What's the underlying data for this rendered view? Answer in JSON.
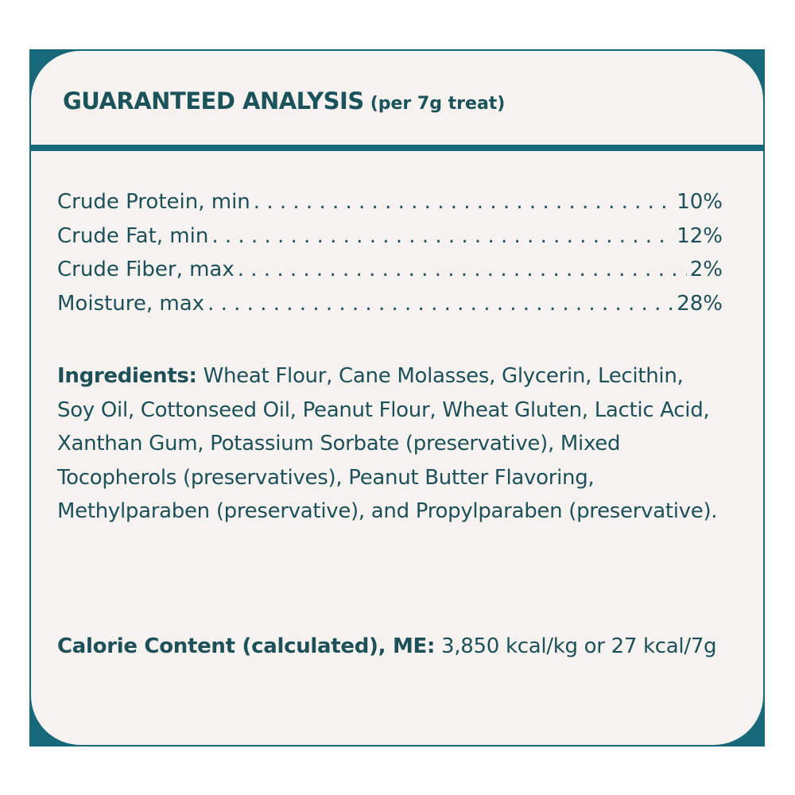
{
  "label": {
    "title": "GUARANTEED ANALYSIS",
    "subtitle": "(per 7g treat)",
    "analysis": [
      {
        "name": "Crude Protein, min",
        "value": "10%"
      },
      {
        "name": "Crude Fat, min",
        "value": "12%"
      },
      {
        "name": "Crude Fiber, max",
        "value": "2%"
      },
      {
        "name": "Moisture, max",
        "value": "28%"
      }
    ],
    "ingredients_label": "Ingredients:",
    "ingredients_text": "Wheat Flour, Cane Molasses, Glycerin, Lecithin, Soy Oil, Cottonseed Oil, Peanut Flour, Wheat Gluten, Lactic Acid, Xanthan Gum, Potassium Sorbate (preservative), Mixed Tocopherols (preservatives), Peanut Butter Flavoring, Methylparaben (preservative), and Propylparaben (preservative).",
    "calorie_label": "Calorie Content (calculated), ME:",
    "calorie_text": "3,850 kcal/kg or 27 kcal/7g"
  },
  "colors": {
    "frame": "#176878",
    "panel": "#f5f2ef",
    "text": "#1d5058"
  }
}
